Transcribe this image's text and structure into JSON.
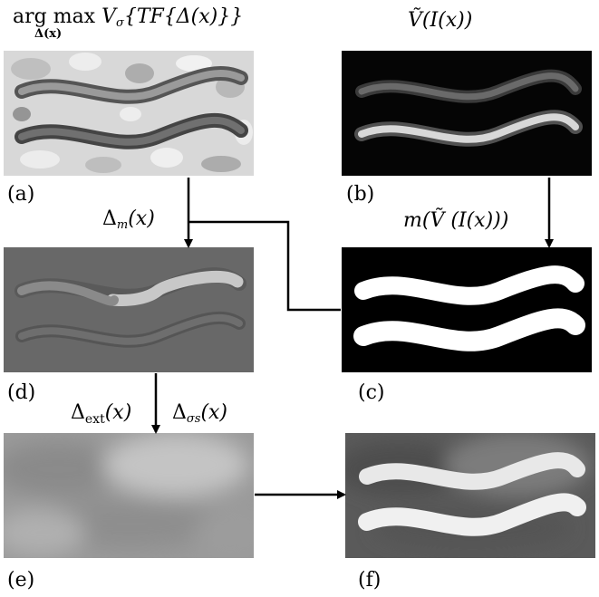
{
  "labels": {
    "top_left": {
      "prefix": "arg max",
      "operator": "V",
      "operator_sub": "σ",
      "body": "{TF{Δ(x)}}",
      "under": "Δ(x)"
    },
    "top_right": "Ṽ(I(x))",
    "a": "(a)",
    "b": "(b)",
    "c": "(c)",
    "d": "(d)",
    "e": "(e)",
    "f": "(f)",
    "delta_m": {
      "symbol": "Δ",
      "sub": "m",
      "arg": "(x)"
    },
    "mask": "m(Ṽ (I(x)))",
    "delta_ext": {
      "symbol": "Δ",
      "sub": "ext",
      "arg": "(x)"
    },
    "delta_sigma": {
      "symbol": "Δ",
      "sub": "σs",
      "arg": "(x)"
    }
  },
  "colors": {
    "panel_a_bg": "#d8d8d8",
    "panel_b_bg": "#050505",
    "panel_c_bg": "#000000",
    "panel_d_bg": "#686868",
    "panel_e_bg": "#9a9a9a",
    "panel_f_bg": "#5a5a5a",
    "arrow": "#000000"
  }
}
